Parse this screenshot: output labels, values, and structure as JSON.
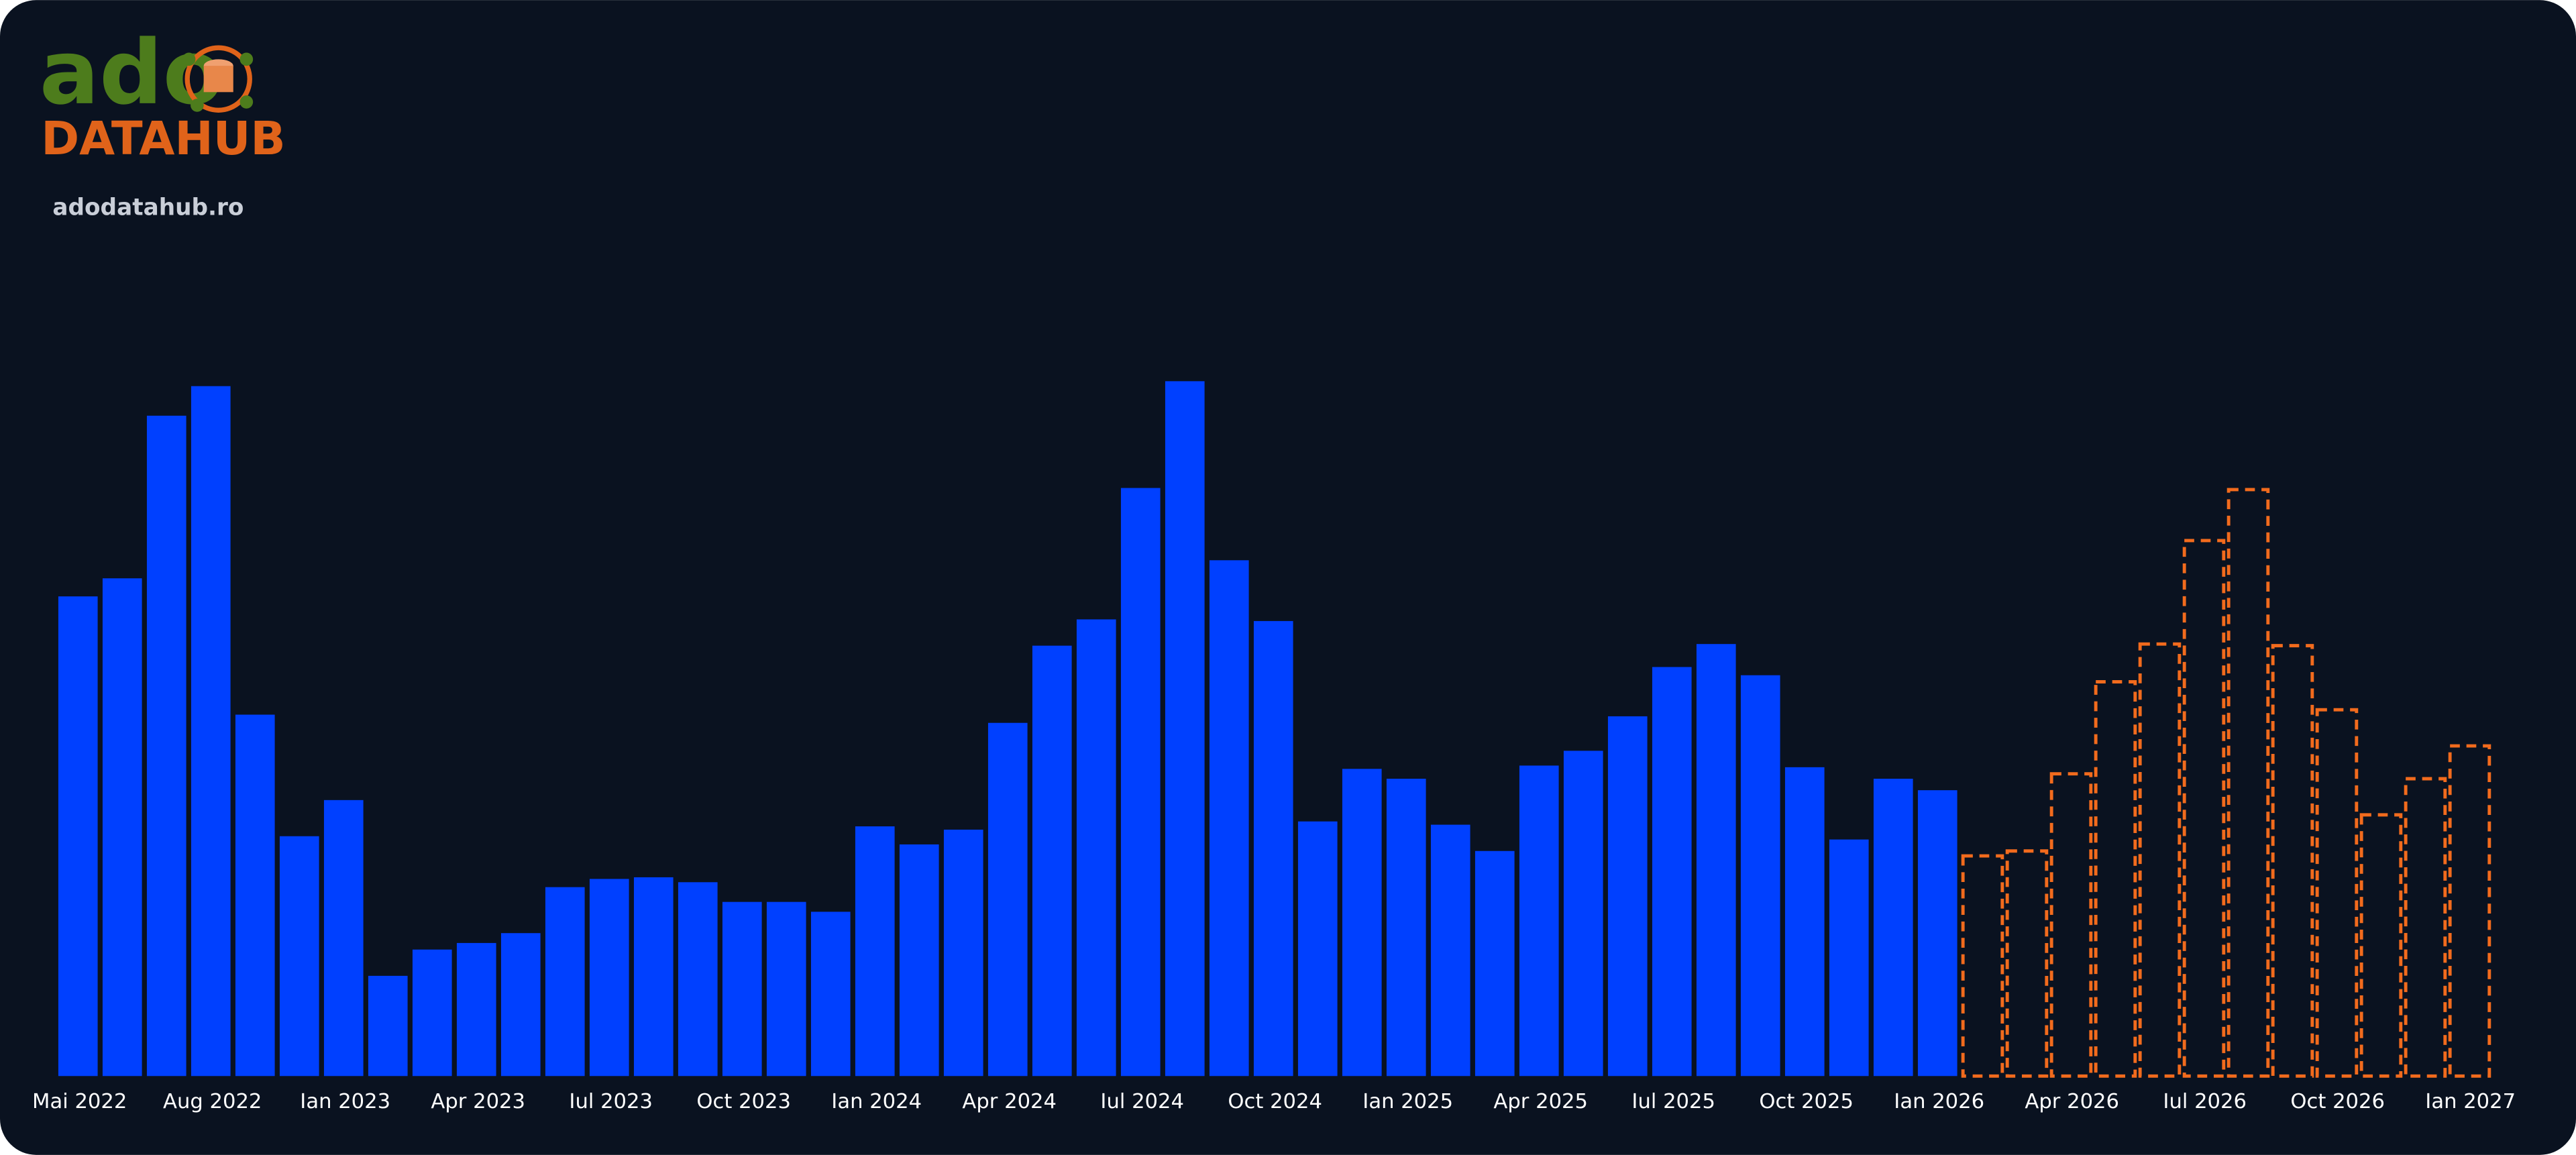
{
  "logo": {
    "mark": "ado",
    "name": "DATAHUB",
    "url": "adodatahub.ro"
  },
  "chart_data": {
    "type": "bar",
    "categories": [
      "Mai 2022",
      null,
      null,
      "Aug 2022",
      null,
      null,
      "Ian 2023",
      null,
      null,
      "Apr 2023",
      null,
      null,
      "Iul 2023",
      null,
      null,
      "Oct 2023",
      null,
      null,
      "Ian 2024",
      null,
      null,
      "Apr 2024",
      null,
      null,
      "Iul 2024",
      null,
      null,
      "Oct 2024",
      null,
      null,
      "Ian 2025",
      null,
      null,
      "Apr 2025",
      null,
      null,
      "Iul 2025",
      null,
      null,
      "Oct 2025",
      null,
      null,
      "Ian 2026",
      null,
      null,
      "Apr 2026",
      null,
      null,
      "Iul 2026",
      null,
      null,
      "Oct 2026",
      null,
      null,
      "Ian 2027"
    ],
    "series": [
      {
        "color": "#0040ff",
        "style": "solid",
        "values": [
          292,
          303,
          402,
          420,
          220,
          146,
          168,
          61,
          77,
          81,
          87,
          115,
          120,
          121,
          118,
          106,
          106,
          100,
          152,
          141,
          150,
          215,
          262,
          278,
          358,
          423,
          314,
          277,
          155,
          187,
          181,
          153,
          137,
          189,
          198,
          219,
          249,
          263,
          244,
          188,
          144,
          181,
          174,
          null,
          null,
          null,
          null,
          null,
          null,
          null,
          null,
          null,
          null,
          null,
          null
        ]
      },
      {
        "color": "#f26b1d",
        "style": "dashed",
        "values": [
          null,
          null,
          null,
          null,
          null,
          null,
          null,
          null,
          null,
          null,
          null,
          null,
          null,
          null,
          null,
          null,
          null,
          null,
          null,
          null,
          null,
          null,
          null,
          null,
          null,
          null,
          null,
          null,
          null,
          null,
          null,
          null,
          null,
          null,
          null,
          null,
          null,
          null,
          null,
          null,
          null,
          null,
          null,
          134,
          137,
          184,
          240,
          263,
          326,
          357,
          262,
          223,
          159,
          181,
          201
        ]
      }
    ],
    "ylim": [
      0,
      440
    ]
  }
}
